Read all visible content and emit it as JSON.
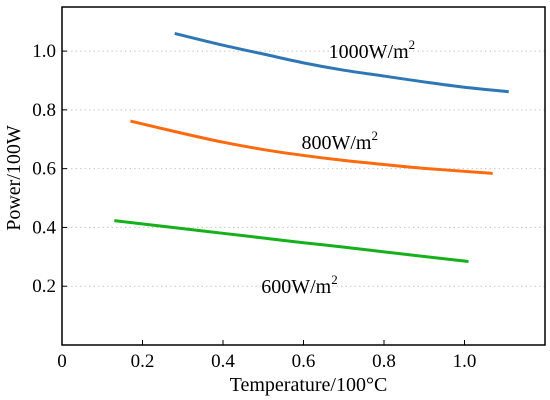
{
  "chart_data": {
    "type": "line",
    "xlabel": "Temperature/100°C",
    "ylabel": "Power/100W",
    "xlim": [
      0,
      1.2
    ],
    "ylim": [
      0,
      1.15
    ],
    "x_ticks": [
      0,
      0.2,
      0.4,
      0.6,
      0.8,
      1.0
    ],
    "x_tick_labels": [
      "0",
      "0.2",
      "0.4",
      "0.6",
      "0.8",
      "1.0"
    ],
    "y_ticks": [
      0.2,
      0.4,
      0.6,
      0.8,
      1.0
    ],
    "y_tick_labels": [
      "0.2",
      "0.4",
      "0.6",
      "0.8",
      "1.0"
    ],
    "grid": "horizontal dotted",
    "legend": "none",
    "series": [
      {
        "name": "1000W/m2",
        "label_main": "1000W/m",
        "label_sup": "2",
        "color": "#2f77b4",
        "x": [
          0.28,
          0.4,
          0.5,
          0.6,
          0.7,
          0.8,
          0.9,
          1.0,
          1.11
        ],
        "y": [
          1.06,
          1.02,
          0.99,
          0.96,
          0.935,
          0.915,
          0.895,
          0.877,
          0.862
        ]
      },
      {
        "name": "800W/m2",
        "label_main": "800W/m",
        "label_sup": "2",
        "color": "#ff6a0e",
        "x": [
          0.17,
          0.3,
          0.4,
          0.5,
          0.6,
          0.7,
          0.8,
          0.9,
          1.07
        ],
        "y": [
          0.762,
          0.72,
          0.69,
          0.665,
          0.645,
          0.628,
          0.614,
          0.601,
          0.584
        ]
      },
      {
        "name": "600W/m2",
        "label_main": "600W/m",
        "label_sup": "2",
        "color": "#17b01d",
        "x": [
          0.13,
          0.3,
          0.4,
          0.5,
          0.6,
          0.7,
          0.8,
          0.9,
          1.01
        ],
        "y": [
          0.423,
          0.396,
          0.38,
          0.364,
          0.348,
          0.333,
          0.317,
          0.301,
          0.284
        ]
      }
    ],
    "series_label_anchor": [
      {
        "x": 0.77,
        "y": 1.0
      },
      {
        "x": 0.69,
        "y": 0.69
      },
      {
        "x": 0.59,
        "y": 0.2
      }
    ]
  }
}
